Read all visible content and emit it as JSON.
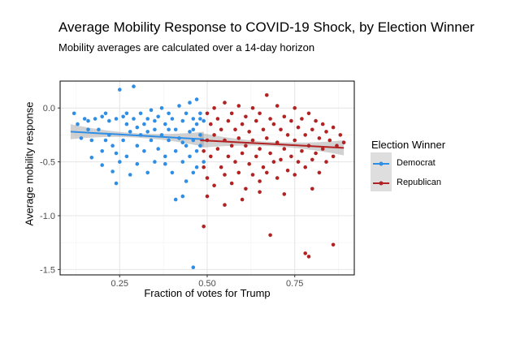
{
  "chart_data": {
    "type": "scatter",
    "title": "Average Mobility Response to COVID-19 Shock, by Election Winner",
    "subtitle": "Mobility averages are calculated over a 14-day horizon",
    "xlabel": "Fraction of votes for Trump",
    "ylabel": "Average mobility response",
    "xlim": [
      0.08,
      0.92
    ],
    "ylim": [
      -1.55,
      0.25
    ],
    "x_ticks": [
      0.25,
      0.5,
      0.75
    ],
    "x_tick_labels": [
      "0.25",
      "0.50",
      "0.75"
    ],
    "y_ticks": [
      0.0,
      -0.5,
      -1.0,
      -1.5
    ],
    "y_tick_labels": [
      "0.0",
      "-0.5",
      "-1.0",
      "-1.5"
    ],
    "grid": true,
    "legend": {
      "title": "Election Winner",
      "position": "right",
      "entries": [
        "Democrat",
        "Republican"
      ]
    },
    "series": [
      {
        "name": "Democrat",
        "color": "#2e8ee6",
        "fit": {
          "x": [
            0.11,
            0.49
          ],
          "y": [
            -0.22,
            -0.29
          ]
        },
        "points": [
          [
            0.12,
            -0.05
          ],
          [
            0.13,
            -0.15
          ],
          [
            0.14,
            -0.28
          ],
          [
            0.15,
            -0.1
          ],
          [
            0.16,
            -0.2
          ],
          [
            0.17,
            -0.3
          ],
          [
            0.17,
            -0.46
          ],
          [
            0.18,
            -0.1
          ],
          [
            0.19,
            -0.2
          ],
          [
            0.2,
            -0.4
          ],
          [
            0.2,
            -0.53
          ],
          [
            0.21,
            -0.05
          ],
          [
            0.22,
            -0.12
          ],
          [
            0.22,
            -0.25
          ],
          [
            0.23,
            -0.35
          ],
          [
            0.23,
            -0.59
          ],
          [
            0.24,
            -0.1
          ],
          [
            0.24,
            -0.7
          ],
          [
            0.25,
            -0.5
          ],
          [
            0.25,
            0.17
          ],
          [
            0.26,
            -0.08
          ],
          [
            0.26,
            -0.3
          ],
          [
            0.27,
            -0.15
          ],
          [
            0.27,
            -0.45
          ],
          [
            0.28,
            -0.22
          ],
          [
            0.28,
            -0.62
          ],
          [
            0.29,
            0.2
          ],
          [
            0.29,
            -0.1
          ],
          [
            0.3,
            -0.35
          ],
          [
            0.3,
            -0.52
          ],
          [
            0.31,
            -0.05
          ],
          [
            0.31,
            -0.25
          ],
          [
            0.32,
            -0.15
          ],
          [
            0.32,
            -0.4
          ],
          [
            0.33,
            -0.6
          ],
          [
            0.33,
            -0.1
          ],
          [
            0.34,
            -0.3
          ],
          [
            0.34,
            -0.02
          ],
          [
            0.35,
            -0.2
          ],
          [
            0.35,
            -0.5
          ],
          [
            0.36,
            -0.08
          ],
          [
            0.36,
            -0.38
          ],
          [
            0.37,
            0.0
          ],
          [
            0.37,
            -0.25
          ],
          [
            0.38,
            -0.15
          ],
          [
            0.38,
            -0.45
          ],
          [
            0.39,
            -0.05
          ],
          [
            0.39,
            -0.3
          ],
          [
            0.4,
            -0.1
          ],
          [
            0.4,
            -0.6
          ],
          [
            0.41,
            -0.2
          ],
          [
            0.41,
            -0.4
          ],
          [
            0.41,
            -0.85
          ],
          [
            0.42,
            0.02
          ],
          [
            0.42,
            -0.28
          ],
          [
            0.43,
            -0.12
          ],
          [
            0.43,
            -0.5
          ],
          [
            0.43,
            -0.82
          ],
          [
            0.44,
            -0.05
          ],
          [
            0.44,
            -0.35
          ],
          [
            0.44,
            -0.68
          ],
          [
            0.45,
            0.05
          ],
          [
            0.45,
            -0.22
          ],
          [
            0.45,
            -0.45
          ],
          [
            0.46,
            -0.1
          ],
          [
            0.46,
            -0.3
          ],
          [
            0.46,
            -0.6
          ],
          [
            0.47,
            0.08
          ],
          [
            0.47,
            -0.15
          ],
          [
            0.47,
            -0.4
          ],
          [
            0.47,
            -0.55
          ],
          [
            0.48,
            -0.05
          ],
          [
            0.48,
            -0.25
          ],
          [
            0.48,
            -0.35
          ],
          [
            0.49,
            -0.12
          ],
          [
            0.49,
            -0.5
          ],
          [
            0.46,
            -1.48
          ],
          [
            0.16,
            -0.12
          ],
          [
            0.21,
            -0.3
          ],
          [
            0.27,
            -0.05
          ],
          [
            0.33,
            -0.22
          ],
          [
            0.39,
            -0.2
          ],
          [
            0.43,
            -0.32
          ],
          [
            0.46,
            -0.2
          ],
          [
            0.48,
            -0.1
          ],
          [
            0.38,
            -0.52
          ],
          [
            0.3,
            -0.18
          ],
          [
            0.24,
            -0.42
          ],
          [
            0.2,
            -0.08
          ],
          [
            0.35,
            -0.12
          ]
        ]
      },
      {
        "name": "Republican",
        "color": "#b22222",
        "fit": {
          "x": [
            0.48,
            0.89
          ],
          "y": [
            -0.3,
            -0.37
          ]
        },
        "points": [
          [
            0.49,
            -0.4
          ],
          [
            0.49,
            -0.55
          ],
          [
            0.5,
            -0.05
          ],
          [
            0.5,
            -0.3
          ],
          [
            0.5,
            -0.65
          ],
          [
            0.51,
            -0.15
          ],
          [
            0.51,
            -0.45
          ],
          [
            0.52,
            0.0
          ],
          [
            0.52,
            -0.25
          ],
          [
            0.52,
            -0.72
          ],
          [
            0.53,
            -0.1
          ],
          [
            0.53,
            -0.38
          ],
          [
            0.54,
            -0.2
          ],
          [
            0.54,
            -0.55
          ],
          [
            0.55,
            0.05
          ],
          [
            0.55,
            -0.3
          ],
          [
            0.55,
            -0.62
          ],
          [
            0.56,
            -0.12
          ],
          [
            0.56,
            -0.45
          ],
          [
            0.57,
            -0.05
          ],
          [
            0.57,
            -0.35
          ],
          [
            0.57,
            -0.7
          ],
          [
            0.58,
            -0.2
          ],
          [
            0.58,
            -0.5
          ],
          [
            0.59,
            0.02
          ],
          [
            0.59,
            -0.28
          ],
          [
            0.59,
            -0.6
          ],
          [
            0.6,
            -0.15
          ],
          [
            0.6,
            -0.42
          ],
          [
            0.61,
            -0.08
          ],
          [
            0.61,
            -0.35
          ],
          [
            0.61,
            -0.75
          ],
          [
            0.62,
            -0.22
          ],
          [
            0.62,
            -0.52
          ],
          [
            0.63,
            0.0
          ],
          [
            0.63,
            -0.3
          ],
          [
            0.63,
            -0.62
          ],
          [
            0.64,
            -0.12
          ],
          [
            0.64,
            -0.45
          ],
          [
            0.65,
            -0.05
          ],
          [
            0.65,
            -0.38
          ],
          [
            0.65,
            -0.68
          ],
          [
            0.66,
            -0.2
          ],
          [
            0.66,
            -0.55
          ],
          [
            0.67,
            0.12
          ],
          [
            0.67,
            -0.28
          ],
          [
            0.67,
            -0.6
          ],
          [
            0.68,
            -0.1
          ],
          [
            0.68,
            -0.42
          ],
          [
            0.69,
            -0.15
          ],
          [
            0.69,
            -0.5
          ],
          [
            0.7,
            0.02
          ],
          [
            0.7,
            -0.32
          ],
          [
            0.7,
            -0.65
          ],
          [
            0.71,
            -0.2
          ],
          [
            0.71,
            -0.48
          ],
          [
            0.72,
            -0.08
          ],
          [
            0.72,
            -0.38
          ],
          [
            0.73,
            -0.25
          ],
          [
            0.73,
            -0.58
          ],
          [
            0.74,
            -0.12
          ],
          [
            0.74,
            -0.45
          ],
          [
            0.75,
            0.0
          ],
          [
            0.75,
            -0.3
          ],
          [
            0.75,
            -0.62
          ],
          [
            0.76,
            -0.18
          ],
          [
            0.76,
            -0.5
          ],
          [
            0.77,
            -0.1
          ],
          [
            0.77,
            -0.4
          ],
          [
            0.78,
            -0.25
          ],
          [
            0.78,
            -0.55
          ],
          [
            0.79,
            -0.05
          ],
          [
            0.79,
            -0.35
          ],
          [
            0.8,
            -0.2
          ],
          [
            0.8,
            -0.48
          ],
          [
            0.81,
            -0.12
          ],
          [
            0.81,
            -0.42
          ],
          [
            0.82,
            -0.28
          ],
          [
            0.82,
            -0.6
          ],
          [
            0.83,
            -0.15
          ],
          [
            0.83,
            -0.38
          ],
          [
            0.84,
            -0.22
          ],
          [
            0.84,
            -0.5
          ],
          [
            0.85,
            -0.3
          ],
          [
            0.86,
            -0.18
          ],
          [
            0.86,
            -0.45
          ],
          [
            0.87,
            -0.35
          ],
          [
            0.88,
            -0.25
          ],
          [
            0.89,
            -0.32
          ],
          [
            0.5,
            -0.82
          ],
          [
            0.49,
            -1.1
          ],
          [
            0.68,
            -1.18
          ],
          [
            0.78,
            -1.35
          ],
          [
            0.79,
            -1.38
          ],
          [
            0.86,
            -1.27
          ],
          [
            0.6,
            -0.85
          ],
          [
            0.72,
            -0.8
          ],
          [
            0.55,
            -0.9
          ],
          [
            0.65,
            -0.78
          ],
          [
            0.8,
            -0.75
          ]
        ]
      }
    ]
  }
}
